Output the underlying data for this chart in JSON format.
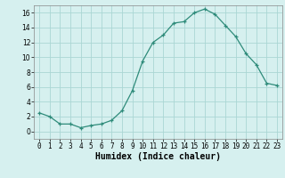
{
  "x": [
    0,
    1,
    2,
    3,
    4,
    5,
    6,
    7,
    8,
    9,
    10,
    11,
    12,
    13,
    14,
    15,
    16,
    17,
    18,
    19,
    20,
    21,
    22,
    23
  ],
  "y": [
    2.5,
    2.0,
    1.0,
    1.0,
    0.5,
    0.8,
    1.0,
    1.5,
    2.8,
    5.5,
    9.5,
    12.0,
    13.0,
    14.6,
    14.8,
    16.0,
    16.5,
    15.8,
    14.3,
    12.8,
    10.5,
    9.0,
    6.5,
    6.2
  ],
  "line_color": "#2e8b7a",
  "marker": "+",
  "marker_size": 3,
  "bg_color": "#d6f0ef",
  "grid_color": "#aad6d4",
  "xlabel": "Humidex (Indice chaleur)",
  "xlabel_fontsize": 7,
  "xlim": [
    -0.5,
    23.5
  ],
  "ylim": [
    -1,
    17
  ],
  "yticks": [
    0,
    2,
    4,
    6,
    8,
    10,
    12,
    14,
    16
  ],
  "xticks": [
    0,
    1,
    2,
    3,
    4,
    5,
    6,
    7,
    8,
    9,
    10,
    11,
    12,
    13,
    14,
    15,
    16,
    17,
    18,
    19,
    20,
    21,
    22,
    23
  ],
  "tick_fontsize": 5.5,
  "linewidth": 0.9
}
